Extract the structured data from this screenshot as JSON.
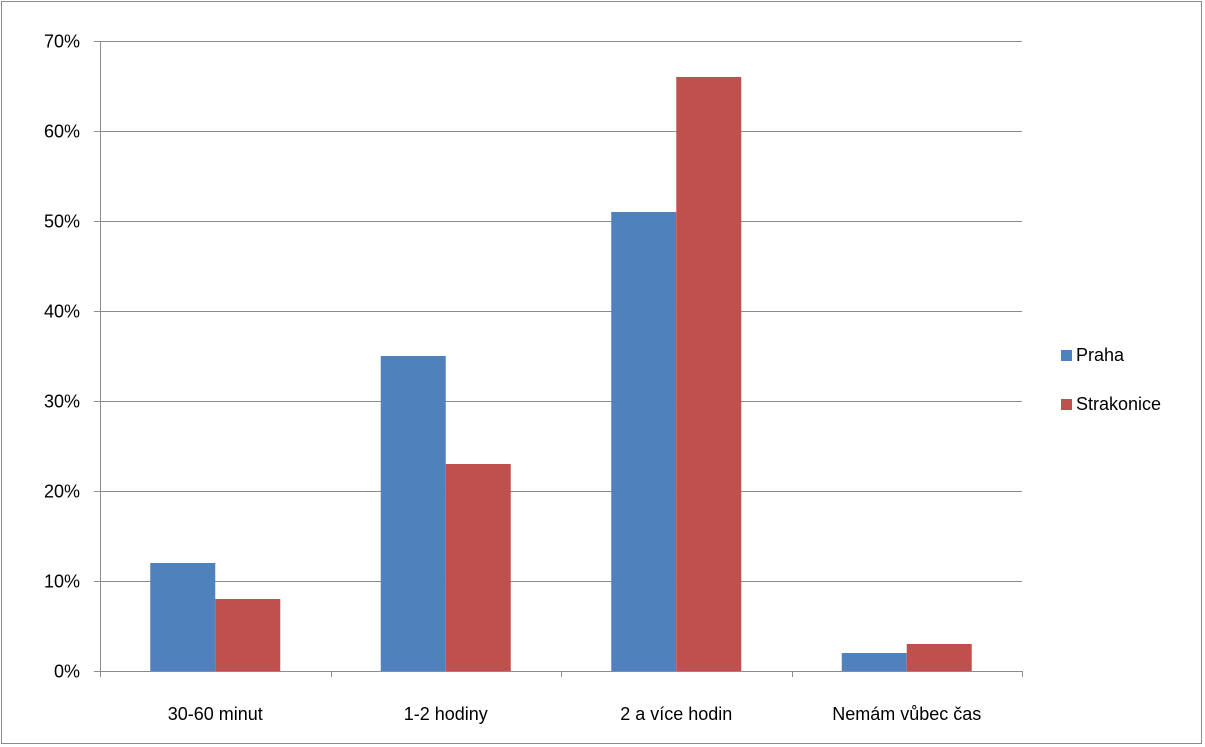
{
  "chart_data": {
    "type": "bar",
    "categories": [
      "30-60 minut",
      "1-2 hodiny",
      "2 a více hodin",
      "Nemám vůbec čas"
    ],
    "series": [
      {
        "name": "Praha",
        "values": [
          12,
          35,
          51,
          2
        ],
        "color": "#4f81bd"
      },
      {
        "name": "Strakonice",
        "values": [
          8,
          23,
          66,
          3
        ],
        "color": "#c0504d"
      }
    ],
    "ylim": [
      0,
      70
    ],
    "yticks": [
      0,
      10,
      20,
      30,
      40,
      50,
      60,
      70
    ],
    "ytick_labels": [
      "0%",
      "10%",
      "20%",
      "30%",
      "40%",
      "50%",
      "60%",
      "70%"
    ],
    "grid": true,
    "legend_position": "right"
  }
}
